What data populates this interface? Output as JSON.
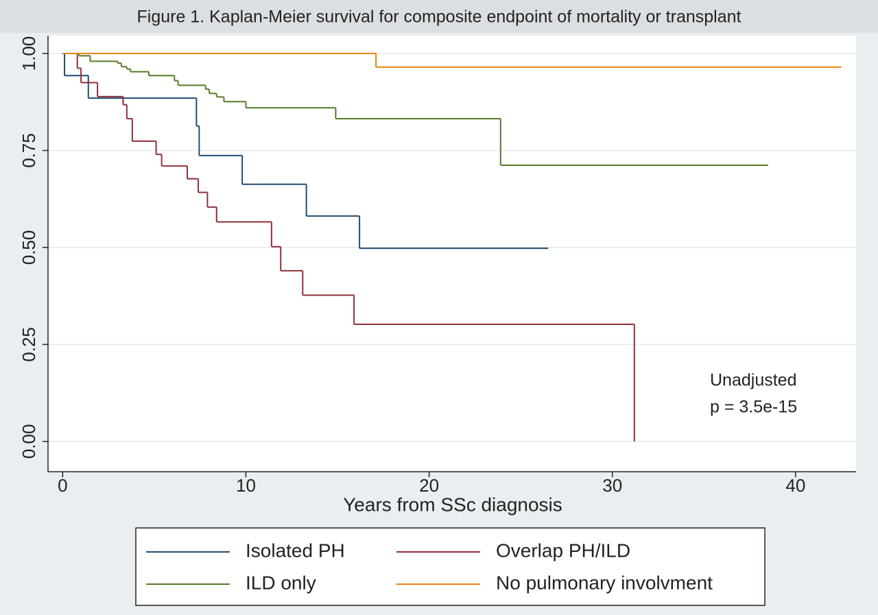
{
  "chart_data": {
    "type": "step",
    "title": "Figure 1. Kaplan-Meier survival for composite endpoint of mortality or transplant",
    "x_label": "Years from SSc diagnosis",
    "annotation": [
      "Unadjusted",
      "p = 3.5e-15"
    ],
    "xlim": [
      -0.8,
      43.3
    ],
    "ylim": [
      -0.078,
      1.046
    ],
    "xticks": [
      0,
      10,
      20,
      30,
      40
    ],
    "yticks": [
      {
        "value": 0,
        "label": "0.00"
      },
      {
        "value": 0.25,
        "label": "0.25"
      },
      {
        "value": 0.5,
        "label": "0.50"
      },
      {
        "value": 0.75,
        "label": "0.75"
      },
      {
        "value": 1,
        "label": "1.00"
      }
    ],
    "grid": true,
    "series": [
      {
        "name": "Isolated PH",
        "color": "#1f4b73",
        "x": [
          0,
          0.1,
          1.4,
          7.3,
          7.45,
          9.8,
          13.3,
          16.2,
          26.5
        ],
        "values": [
          1,
          0.943,
          0.885,
          0.813,
          0.737,
          0.663,
          0.581,
          0.498,
          0.498
        ]
      },
      {
        "name": "Overlap PH/ILD",
        "color": "#8f2f3a",
        "x": [
          0,
          0.8,
          1.0,
          1.9,
          3.3,
          3.5,
          3.8,
          5.1,
          5.4,
          6.8,
          7.4,
          7.9,
          8.4,
          11.4,
          11.9,
          13.1,
          15.9,
          31.2
        ],
        "values": [
          1,
          0.962,
          0.925,
          0.889,
          0.868,
          0.832,
          0.774,
          0.74,
          0.71,
          0.677,
          0.642,
          0.604,
          0.566,
          0.502,
          0.44,
          0.377,
          0.302,
          0
        ]
      },
      {
        "name": "ILD only",
        "color": "#557a25",
        "x": [
          0,
          0.9,
          1.5,
          3.0,
          3.2,
          3.5,
          3.7,
          4.7,
          6.1,
          6.3,
          7.8,
          8.0,
          8.4,
          8.8,
          10.0,
          14.9,
          23.9,
          38.5
        ],
        "values": [
          1,
          0.994,
          0.98,
          0.975,
          0.966,
          0.96,
          0.953,
          0.943,
          0.93,
          0.918,
          0.908,
          0.897,
          0.888,
          0.876,
          0.86,
          0.832,
          0.712,
          0.712
        ]
      },
      {
        "name": "No pulmonary involvment",
        "color": "#e8830c",
        "x": [
          0,
          17.1,
          42.5
        ],
        "values": [
          1,
          0.965,
          0.965
        ]
      }
    ]
  }
}
